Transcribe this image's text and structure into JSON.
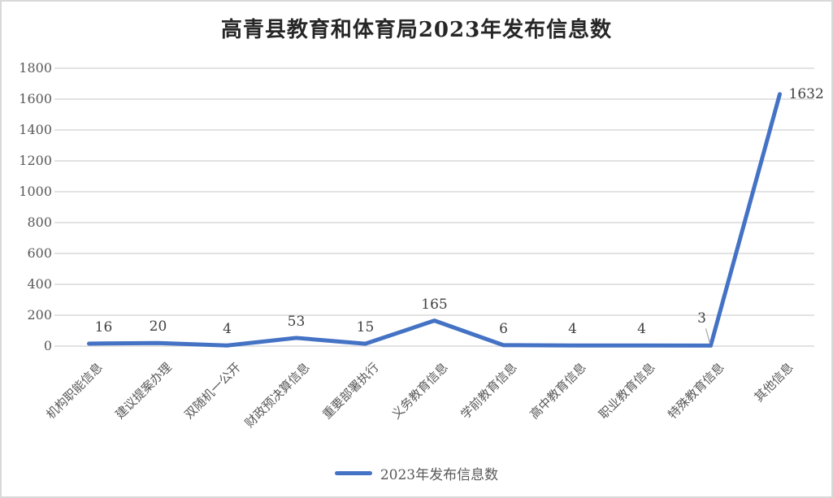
{
  "chart_data": {
    "type": "line",
    "title": "高青县教育和体育局2023年发布信息数",
    "categories": [
      "机构职能信息",
      "建议提案办理",
      "双随机一公开",
      "财政预决算信息",
      "重要部署执行",
      "义务教育信息",
      "学前教育信息",
      "高中教育信息",
      "职业教育信息",
      "特殊教育信息",
      "其他信息"
    ],
    "series": [
      {
        "name": "2023年发布信息数",
        "values": [
          16,
          20,
          4,
          53,
          15,
          165,
          6,
          4,
          4,
          3,
          1632
        ]
      }
    ],
    "ylim": [
      0,
      1800
    ],
    "ytick_step": 200,
    "ytick_labels": [
      "0",
      "200",
      "400",
      "600",
      "800",
      "1000",
      "1200",
      "1400",
      "1600",
      "1800"
    ],
    "grid": "horizontal",
    "legend_position": "bottom",
    "data_labels_shown": true,
    "colors": {
      "line": "#4472C4",
      "grid": "#D9D9D9",
      "axis_text": "#595959",
      "data_label_text": "#404040",
      "title_text": "#262626",
      "leader_line": "#A6A6A6",
      "border": "#D9D9D9"
    }
  }
}
